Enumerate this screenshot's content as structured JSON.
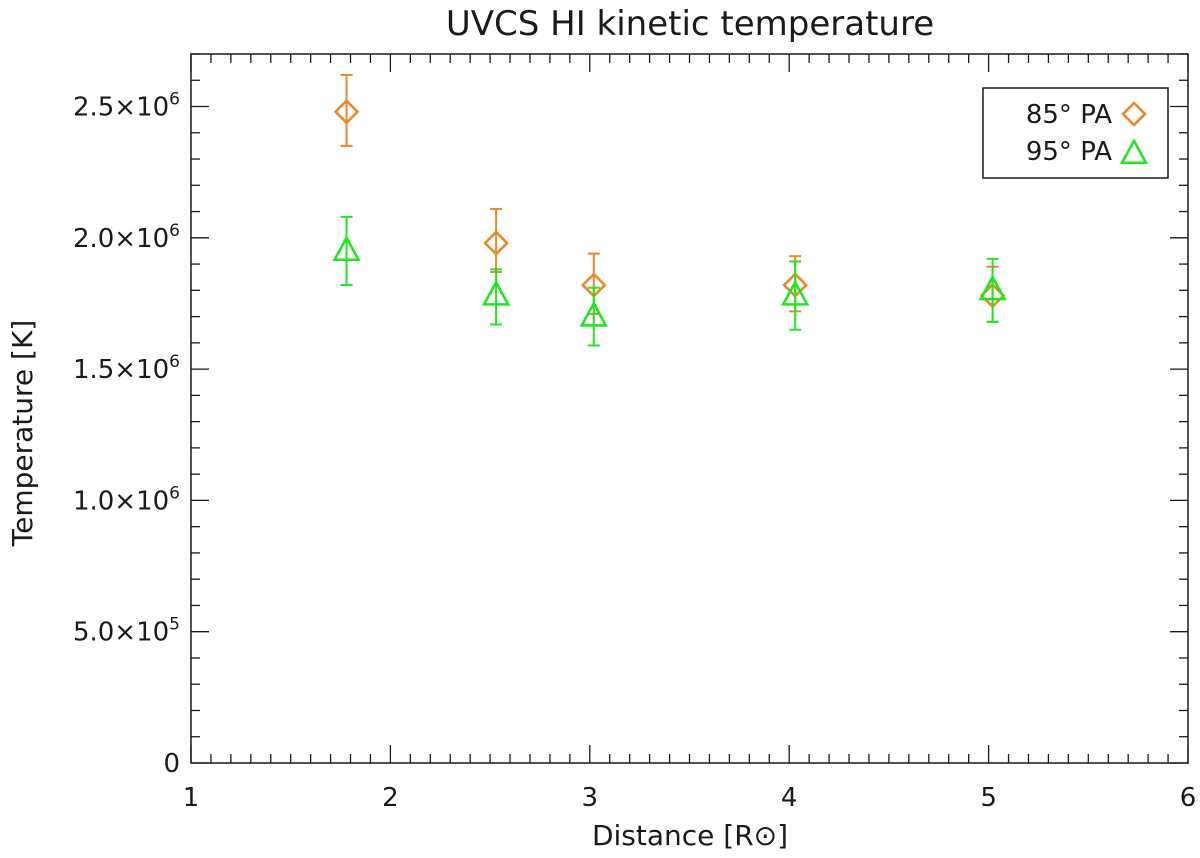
{
  "chart_data": {
    "type": "scatter",
    "title": "UVCS HI kinetic temperature",
    "xlabel": "Distance [R⊙]",
    "ylabel": "Temperature [K]",
    "xlim": [
      1,
      6
    ],
    "ylim": [
      0,
      2700000
    ],
    "x_ticks": [
      {
        "value": 1,
        "label": "1"
      },
      {
        "value": 2,
        "label": "2"
      },
      {
        "value": 3,
        "label": "3"
      },
      {
        "value": 4,
        "label": "4"
      },
      {
        "value": 5,
        "label": "5"
      },
      {
        "value": 6,
        "label": "6"
      }
    ],
    "y_ticks": [
      {
        "value": 0,
        "label": "0"
      },
      {
        "value": 500000,
        "label": "5.0×10",
        "exp": "5"
      },
      {
        "value": 1000000,
        "label": "1.0×10",
        "exp": "6"
      },
      {
        "value": 1500000,
        "label": "1.5×10",
        "exp": "6"
      },
      {
        "value": 2000000,
        "label": "2.0×10",
        "exp": "6"
      },
      {
        "value": 2500000,
        "label": "2.5×10",
        "exp": "6"
      }
    ],
    "legend_position": "top-right",
    "series": [
      {
        "name": "85° PA",
        "marker": "diamond",
        "color": "#e8892b",
        "x": [
          1.78,
          2.53,
          3.02,
          4.03,
          5.02
        ],
        "y": [
          2480000,
          1980000,
          1820000,
          1820000,
          1780000
        ],
        "err_low": [
          2350000,
          1870000,
          1710000,
          1720000,
          1680000
        ],
        "err_high": [
          2620000,
          2110000,
          1940000,
          1930000,
          1890000
        ]
      },
      {
        "name": "95° PA",
        "marker": "triangle",
        "color": "#22e622",
        "x": [
          1.78,
          2.53,
          3.02,
          4.03,
          5.02
        ],
        "y": [
          1950000,
          1780000,
          1700000,
          1780000,
          1800000
        ],
        "err_low": [
          1820000,
          1670000,
          1590000,
          1650000,
          1680000
        ],
        "err_high": [
          2080000,
          1880000,
          1810000,
          1910000,
          1920000
        ]
      }
    ]
  }
}
